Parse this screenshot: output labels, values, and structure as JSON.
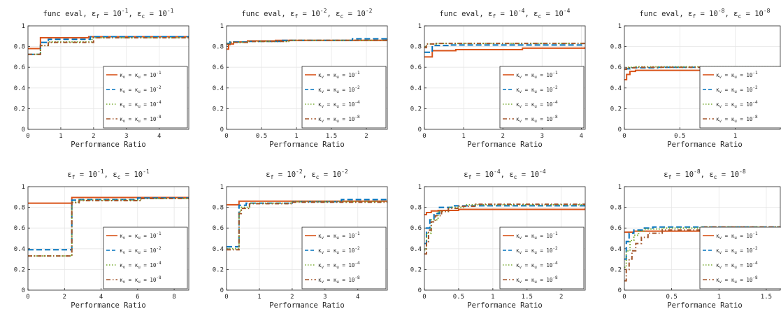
{
  "figure": {
    "legend_series_labels": [
      [
        "κ",
        "v",
        " = ",
        "κ",
        "u",
        " = 10",
        "-1"
      ],
      [
        "κ",
        "v",
        " = ",
        "κ",
        "u",
        " = 10",
        "-2"
      ],
      [
        "κ",
        "v",
        " = ",
        "κ",
        "u",
        " = 10",
        "-4"
      ],
      [
        "κ",
        "v",
        " = ",
        "κ",
        "u",
        " = 10",
        "-8"
      ]
    ]
  },
  "chart_data": [
    {
      "type": "line",
      "title": [
        "func eval, ",
        "ε",
        "f",
        " = 10",
        "-1",
        ", ",
        "ε",
        "c",
        " = 10",
        "-1"
      ],
      "xlabel": "Performance Ratio",
      "xlim": [
        0,
        4.9
      ],
      "ylim": [
        0,
        1
      ],
      "xticks": [
        0,
        1,
        2,
        3,
        4
      ],
      "xtick_labels": [
        "0",
        "1",
        "2",
        "3",
        "4"
      ],
      "yticks": [
        0,
        0.2,
        0.4,
        0.6,
        0.8,
        1
      ],
      "ytick_labels": [
        "0",
        "0.2",
        "0.4",
        "0.6",
        "0.8",
        "1"
      ],
      "grid": true,
      "legend_placement": "lower-right",
      "series": [
        {
          "color": "#d95319",
          "dash": "solid",
          "x": [
            0,
            0.38,
            1.85,
            4.9
          ],
          "y": [
            0.78,
            0.885,
            0.895,
            0.895
          ]
        },
        {
          "color": "#0072bd",
          "dash": "dashed",
          "x": [
            0,
            0.38,
            0.62,
            1.9,
            4.9
          ],
          "y": [
            0.725,
            0.84,
            0.87,
            0.895,
            0.895
          ]
        },
        {
          "color": "#77ac30",
          "dash": "dotted",
          "x": [
            0,
            0.38,
            0.62,
            1.95,
            4.9
          ],
          "y": [
            0.725,
            0.81,
            0.845,
            0.885,
            0.885
          ]
        },
        {
          "color": "#a2542a",
          "dash": "dashdot",
          "x": [
            0,
            0.38,
            0.62,
            2.0,
            4.9
          ],
          "y": [
            0.725,
            0.81,
            0.84,
            0.885,
            0.885
          ]
        }
      ]
    },
    {
      "type": "line",
      "title": [
        "func eval, ",
        "ε",
        "f",
        " = 10",
        "-2",
        ", ",
        "ε",
        "c",
        " = 10",
        "-2"
      ],
      "xlabel": "Performance Ratio",
      "xlim": [
        0,
        2.3
      ],
      "ylim": [
        0,
        1
      ],
      "xticks": [
        0,
        0.5,
        1,
        1.5,
        2
      ],
      "xtick_labels": [
        "0",
        "0.5",
        "1",
        "1.5",
        "2"
      ],
      "yticks": [
        0,
        0.2,
        0.4,
        0.6,
        0.8,
        1
      ],
      "ytick_labels": [
        "0",
        "0.2",
        "0.4",
        "0.6",
        "0.8",
        "1"
      ],
      "grid": true,
      "legend_placement": "lower-right",
      "series": [
        {
          "color": "#d95319",
          "dash": "solid",
          "x": [
            0,
            0.03,
            0.1,
            0.3,
            0.7,
            2.3
          ],
          "y": [
            0.775,
            0.825,
            0.845,
            0.855,
            0.86,
            0.865
          ]
        },
        {
          "color": "#0072bd",
          "dash": "dashed",
          "x": [
            0,
            0.05,
            0.3,
            0.8,
            1.8,
            2.3
          ],
          "y": [
            0.83,
            0.845,
            0.85,
            0.86,
            0.875,
            0.875
          ]
        },
        {
          "color": "#77ac30",
          "dash": "dotted",
          "x": [
            0,
            0.05,
            0.3,
            0.9,
            2.3
          ],
          "y": [
            0.825,
            0.84,
            0.85,
            0.86,
            0.865
          ]
        },
        {
          "color": "#a2542a",
          "dash": "dashdot",
          "x": [
            0,
            0.05,
            0.3,
            0.9,
            2.3
          ],
          "y": [
            0.82,
            0.84,
            0.85,
            0.86,
            0.865
          ]
        }
      ]
    },
    {
      "type": "line",
      "title": [
        "func eval, ",
        "ε",
        "f",
        " = 10",
        "-4",
        ", ",
        "ε",
        "c",
        " = 10",
        "-4"
      ],
      "xlabel": "Performance Ratio",
      "xlim": [
        0,
        4.1
      ],
      "ylim": [
        0,
        1
      ],
      "xticks": [
        0,
        1,
        2,
        3,
        4
      ],
      "xtick_labels": [
        "0",
        "1",
        "2",
        "3",
        "4"
      ],
      "yticks": [
        0,
        0.2,
        0.4,
        0.6,
        0.8,
        1
      ],
      "ytick_labels": [
        "0",
        "0.2",
        "0.4",
        "0.6",
        "0.8",
        "1"
      ],
      "grid": true,
      "legend_placement": "lower-right",
      "series": [
        {
          "color": "#d95319",
          "dash": "solid",
          "x": [
            0,
            0.2,
            0.8,
            2.5,
            4.1
          ],
          "y": [
            0.7,
            0.76,
            0.77,
            0.785,
            0.79
          ]
        },
        {
          "color": "#0072bd",
          "dash": "dashed",
          "x": [
            0,
            0.2,
            0.6,
            4.1
          ],
          "y": [
            0.745,
            0.81,
            0.815,
            0.815
          ]
        },
        {
          "color": "#77ac30",
          "dash": "dotted",
          "x": [
            0,
            0.05,
            0.3,
            4.1
          ],
          "y": [
            0.795,
            0.825,
            0.83,
            0.83
          ]
        },
        {
          "color": "#a2542a",
          "dash": "dashdot",
          "x": [
            0,
            0.05,
            0.3,
            4.1
          ],
          "y": [
            0.79,
            0.825,
            0.83,
            0.83
          ]
        }
      ]
    },
    {
      "type": "line",
      "title": [
        "func eval, ",
        "ε",
        "f",
        " = 10",
        "-8",
        ", ",
        "ε",
        "c",
        " = 10",
        "-8"
      ],
      "xlabel": "Performance Ratio",
      "xlim": [
        0,
        1.45
      ],
      "ylim": [
        0,
        1
      ],
      "xticks": [
        0,
        0.5,
        1
      ],
      "xtick_labels": [
        "0",
        "0.5",
        "1"
      ],
      "yticks": [
        0,
        0.2,
        0.4,
        0.6,
        0.8,
        1
      ],
      "ytick_labels": [
        "0",
        "0.2",
        "0.4",
        "0.6",
        "0.8",
        "1"
      ],
      "grid": true,
      "legend_placement": "lower-right",
      "series": [
        {
          "color": "#d95319",
          "dash": "solid",
          "x": [
            0,
            0.02,
            0.05,
            0.1,
            0.85,
            1.45
          ],
          "y": [
            0.48,
            0.53,
            0.56,
            0.57,
            0.6,
            0.6
          ]
        },
        {
          "color": "#0072bd",
          "dash": "dashed",
          "x": [
            0,
            0.05,
            0.3,
            1.45
          ],
          "y": [
            0.585,
            0.595,
            0.6,
            0.61
          ]
        },
        {
          "color": "#77ac30",
          "dash": "dotted",
          "x": [
            0,
            0.02,
            0.1,
            1.45
          ],
          "y": [
            0.58,
            0.6,
            0.605,
            0.61
          ]
        },
        {
          "color": "#a2542a",
          "dash": "dashdot",
          "x": [
            0,
            0.02,
            0.1,
            1.45
          ],
          "y": [
            0.58,
            0.595,
            0.6,
            0.61
          ]
        }
      ]
    },
    {
      "type": "line",
      "title": [
        "",
        "ε",
        "f",
        " = 10",
        "-1",
        ", ",
        "ε",
        "c",
        " = 10",
        "-1"
      ],
      "xlabel": "Performance Ratio",
      "xlim": [
        0,
        8.8
      ],
      "ylim": [
        0,
        1
      ],
      "xticks": [
        0,
        2,
        4,
        6,
        8
      ],
      "xtick_labels": [
        "0",
        "2",
        "4",
        "6",
        "8"
      ],
      "yticks": [
        0,
        0.2,
        0.4,
        0.6,
        0.8,
        1
      ],
      "ytick_labels": [
        "0",
        "0.2",
        "0.4",
        "0.6",
        "0.8",
        "1"
      ],
      "grid": true,
      "legend_placement": "lower-right",
      "series": [
        {
          "color": "#d95319",
          "dash": "solid",
          "x": [
            0,
            2.4,
            4.0,
            8.8
          ],
          "y": [
            0.84,
            0.895,
            0.895,
            0.895
          ]
        },
        {
          "color": "#0072bd",
          "dash": "dashed",
          "x": [
            0,
            2.4,
            2.7,
            6.0,
            8.8
          ],
          "y": [
            0.39,
            0.87,
            0.875,
            0.89,
            0.89
          ]
        },
        {
          "color": "#77ac30",
          "dash": "dotted",
          "x": [
            0,
            2.4,
            2.8,
            6.2,
            8.8
          ],
          "y": [
            0.33,
            0.85,
            0.87,
            0.885,
            0.885
          ]
        },
        {
          "color": "#a2542a",
          "dash": "dashdot",
          "x": [
            0,
            2.4,
            2.8,
            6.2,
            8.8
          ],
          "y": [
            0.33,
            0.845,
            0.865,
            0.885,
            0.885
          ]
        }
      ]
    },
    {
      "type": "line",
      "title": [
        "",
        "ε",
        "f",
        " = 10",
        "-2",
        ", ",
        "ε",
        "c",
        " = 10",
        "-2"
      ],
      "xlabel": "Performance Ratio",
      "xlim": [
        0,
        4.9
      ],
      "ylim": [
        0,
        1
      ],
      "xticks": [
        0,
        1,
        2,
        3,
        4
      ],
      "xtick_labels": [
        "0",
        "1",
        "2",
        "3",
        "4"
      ],
      "yticks": [
        0,
        0.2,
        0.4,
        0.6,
        0.8,
        1
      ],
      "ytick_labels": [
        "0",
        "0.2",
        "0.4",
        "0.6",
        "0.8",
        "1"
      ],
      "grid": true,
      "legend_placement": "lower-right",
      "series": [
        {
          "color": "#d95319",
          "dash": "solid",
          "x": [
            0,
            0.38,
            4.9
          ],
          "y": [
            0.825,
            0.86,
            0.86
          ]
        },
        {
          "color": "#0072bd",
          "dash": "dashed",
          "x": [
            0,
            0.38,
            0.6,
            2.0,
            3.5,
            4.9
          ],
          "y": [
            0.42,
            0.82,
            0.84,
            0.855,
            0.875,
            0.875
          ]
        },
        {
          "color": "#77ac30",
          "dash": "dotted",
          "x": [
            0,
            0.38,
            0.45,
            0.7,
            2.0,
            4.9
          ],
          "y": [
            0.4,
            0.76,
            0.8,
            0.84,
            0.855,
            0.86
          ]
        },
        {
          "color": "#a2542a",
          "dash": "dashdot",
          "x": [
            0,
            0.38,
            0.45,
            0.7,
            2.0,
            4.9
          ],
          "y": [
            0.39,
            0.74,
            0.79,
            0.835,
            0.85,
            0.86
          ]
        }
      ]
    },
    {
      "type": "line",
      "title": [
        "",
        "ε",
        "f",
        " = 10",
        "-4",
        ", ",
        "ε",
        "c",
        " = 10",
        "-4"
      ],
      "xlabel": "Performance Ratio",
      "xlim": [
        0,
        2.35
      ],
      "ylim": [
        0,
        1
      ],
      "xticks": [
        0,
        0.5,
        1,
        1.5,
        2
      ],
      "xtick_labels": [
        "0",
        "0.5",
        "1",
        "1.5",
        "2"
      ],
      "yticks": [
        0,
        0.2,
        0.4,
        0.6,
        0.8,
        1
      ],
      "ytick_labels": [
        "0",
        "0.2",
        "0.4",
        "0.6",
        "0.8",
        "1"
      ],
      "grid": true,
      "legend_placement": "lower-right",
      "series": [
        {
          "color": "#d95319",
          "dash": "solid",
          "x": [
            0,
            0.03,
            0.1,
            0.2,
            0.5,
            2.35
          ],
          "y": [
            0.73,
            0.75,
            0.765,
            0.77,
            0.78,
            0.785
          ]
        },
        {
          "color": "#0072bd",
          "dash": "dashed",
          "x": [
            0,
            0.03,
            0.08,
            0.14,
            0.22,
            0.4,
            2.35
          ],
          "y": [
            0.45,
            0.6,
            0.68,
            0.74,
            0.8,
            0.815,
            0.815
          ]
        },
        {
          "color": "#77ac30",
          "dash": "dotted",
          "x": [
            0,
            0.03,
            0.1,
            0.2,
            0.35,
            0.6,
            2.35
          ],
          "y": [
            0.39,
            0.55,
            0.68,
            0.76,
            0.8,
            0.825,
            0.825
          ]
        },
        {
          "color": "#a2542a",
          "dash": "dashdot",
          "x": [
            0,
            0.03,
            0.06,
            0.1,
            0.16,
            0.25,
            0.35,
            0.5,
            0.75,
            2.35
          ],
          "y": [
            0.35,
            0.47,
            0.58,
            0.66,
            0.72,
            0.76,
            0.79,
            0.81,
            0.83,
            0.83
          ]
        }
      ]
    },
    {
      "type": "line",
      "title": [
        "",
        "ε",
        "f",
        " = 10",
        "-8",
        ", ",
        "ε",
        "c",
        " = 10",
        "-8"
      ],
      "xlabel": "Performance Ratio",
      "xlim": [
        0,
        1.7
      ],
      "ylim": [
        0,
        1
      ],
      "xticks": [
        0,
        0.5,
        1,
        1.5
      ],
      "xtick_labels": [
        "0",
        "0.5",
        "1",
        "1.5"
      ],
      "yticks": [
        0,
        0.2,
        0.4,
        0.6,
        0.8,
        1
      ],
      "ytick_labels": [
        "0",
        "0.2",
        "0.4",
        "0.6",
        "0.8",
        "1"
      ],
      "grid": true,
      "legend_placement": "lower-right",
      "series": [
        {
          "color": "#d95319",
          "dash": "solid",
          "x": [
            0,
            0.1,
            0.3,
            1.7
          ],
          "y": [
            0.56,
            0.57,
            0.57,
            0.57
          ]
        },
        {
          "color": "#0072bd",
          "dash": "dashed",
          "x": [
            0,
            0.02,
            0.05,
            0.1,
            0.2,
            0.3,
            0.8,
            1.7
          ],
          "y": [
            0.3,
            0.47,
            0.55,
            0.58,
            0.6,
            0.61,
            0.61,
            0.61
          ]
        },
        {
          "color": "#77ac30",
          "dash": "dotted",
          "x": [
            0,
            0.02,
            0.06,
            0.1,
            0.15,
            0.22,
            0.4,
            0.8,
            1.7
          ],
          "y": [
            0.22,
            0.38,
            0.48,
            0.53,
            0.57,
            0.59,
            0.6,
            0.61,
            0.61
          ]
        },
        {
          "color": "#a2542a",
          "dash": "dashdot",
          "x": [
            0,
            0.02,
            0.05,
            0.08,
            0.12,
            0.18,
            0.25,
            0.4,
            0.85,
            1.7
          ],
          "y": [
            0.09,
            0.2,
            0.3,
            0.38,
            0.45,
            0.51,
            0.55,
            0.58,
            0.61,
            0.61
          ]
        }
      ]
    }
  ]
}
